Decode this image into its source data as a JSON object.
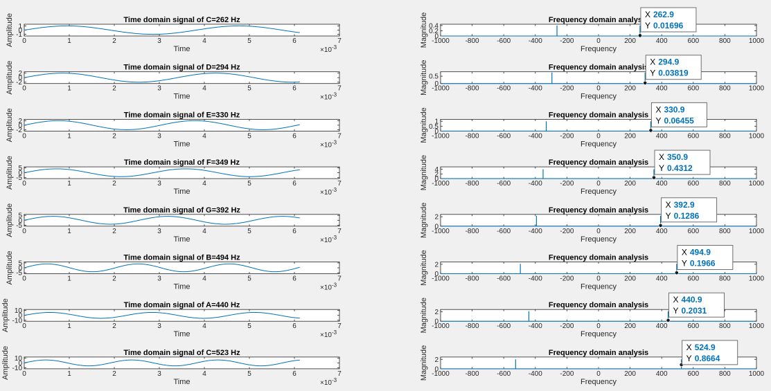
{
  "chart_data": [
    {
      "panel": "time",
      "row": 0,
      "type": "line",
      "title": "Time domain signal of C=262 Hz",
      "xlabel": "Time",
      "ylabel": "Amplitude",
      "freq_hz": 262,
      "amplitude": 1,
      "xlim": [
        0,
        7
      ],
      "x_exponent": "×10",
      "x_exponent_power": "-3",
      "xticks": [
        "0",
        "1",
        "2",
        "3",
        "4",
        "5",
        "6",
        "7"
      ],
      "ylim": [
        -1.4,
        1.4
      ],
      "yticks": [
        -1,
        0,
        1
      ],
      "ytick_labels": [
        "-1",
        "0",
        "1"
      ],
      "x_end": 6.12
    },
    {
      "panel": "time",
      "row": 1,
      "type": "line",
      "title": "Time domain signal of D=294 Hz",
      "xlabel": "Time",
      "ylabel": "Amplitude",
      "freq_hz": 294,
      "amplitude": 2,
      "xlim": [
        0,
        7
      ],
      "x_exponent": "×10",
      "x_exponent_power": "-3",
      "xticks": [
        "0",
        "1",
        "2",
        "3",
        "4",
        "5",
        "6",
        "7"
      ],
      "ylim": [
        -2.6,
        2.6
      ],
      "yticks": [
        -2,
        0,
        2
      ],
      "ytick_labels": [
        "-2",
        "0",
        "2"
      ],
      "x_end": 6.12
    },
    {
      "panel": "time",
      "row": 2,
      "type": "line",
      "title": "Time domain signal of E=330 Hz",
      "xlabel": "Time",
      "ylabel": "Amplitude",
      "freq_hz": 330,
      "amplitude": 2,
      "xlim": [
        0,
        7
      ],
      "x_exponent": "×10",
      "x_exponent_power": "-3",
      "xticks": [
        "0",
        "1",
        "2",
        "3",
        "4",
        "5",
        "6",
        "7"
      ],
      "ylim": [
        -2.6,
        2.6
      ],
      "yticks": [
        -2,
        0,
        2
      ],
      "ytick_labels": [
        "-2",
        "0",
        "2"
      ],
      "x_end": 6.12
    },
    {
      "panel": "time",
      "row": 3,
      "type": "line",
      "title": "Time domain signal of F=349 Hz",
      "xlabel": "Time",
      "ylabel": "Amplitude",
      "freq_hz": 349,
      "amplitude": 4,
      "xlim": [
        0,
        7
      ],
      "x_exponent": "×10",
      "x_exponent_power": "-3",
      "xticks": [
        "0",
        "1",
        "2",
        "3",
        "4",
        "5",
        "6",
        "7"
      ],
      "ylim": [
        -6,
        6
      ],
      "yticks": [
        -5,
        0,
        5
      ],
      "ytick_labels": [
        "-5",
        "0",
        "5"
      ],
      "x_end": 6.12
    },
    {
      "panel": "time",
      "row": 4,
      "type": "line",
      "title": "Time domain signal of G=392 Hz",
      "xlabel": "Time",
      "ylabel": "Amplitude",
      "freq_hz": 392,
      "amplitude": 4,
      "xlim": [
        0,
        7
      ],
      "x_exponent": "×10",
      "x_exponent_power": "-3",
      "xticks": [
        "0",
        "1",
        "2",
        "3",
        "4",
        "5",
        "6",
        "7"
      ],
      "ylim": [
        -6,
        6
      ],
      "yticks": [
        -5,
        0,
        5
      ],
      "ytick_labels": [
        "-5",
        "0",
        "5"
      ],
      "x_end": 6.12
    },
    {
      "panel": "time",
      "row": 5,
      "type": "line",
      "title": "Time domain signal of B=494 Hz",
      "xlabel": "Time",
      "ylabel": "Amplitude",
      "freq_hz": 494,
      "amplitude": 4,
      "xlim": [
        0,
        7
      ],
      "x_exponent": "×10",
      "x_exponent_power": "-3",
      "xticks": [
        "0",
        "1",
        "2",
        "3",
        "4",
        "5",
        "6",
        "7"
      ],
      "ylim": [
        -6,
        6
      ],
      "yticks": [
        -5,
        0,
        5
      ],
      "ytick_labels": [
        "-5",
        "0",
        "5"
      ],
      "x_end": 6.12
    },
    {
      "panel": "time",
      "row": 6,
      "type": "line",
      "title": "Time domain signal of A=440 Hz",
      "xlabel": "Time",
      "ylabel": "Amplitude",
      "freq_hz": 440,
      "amplitude": 6,
      "xlim": [
        0,
        7
      ],
      "x_exponent": "×10",
      "x_exponent_power": "-3",
      "xticks": [
        "0",
        "1",
        "2",
        "3",
        "4",
        "5",
        "6",
        "7"
      ],
      "ylim": [
        -12,
        12
      ],
      "yticks": [
        -10,
        0,
        10
      ],
      "ytick_labels": [
        "-10",
        "0",
        "10"
      ],
      "x_end": 6.12
    },
    {
      "panel": "time",
      "row": 7,
      "type": "line",
      "title": "Time domain signal of C=523 Hz",
      "xlabel": "Time",
      "ylabel": "Amplitude",
      "freq_hz": 523,
      "amplitude": 6,
      "xlim": [
        0,
        7
      ],
      "x_exponent": "×10",
      "x_exponent_power": "-3",
      "xticks": [
        "0",
        "1",
        "2",
        "3",
        "4",
        "5",
        "6",
        "7"
      ],
      "ylim": [
        -12,
        12
      ],
      "yticks": [
        -10,
        0,
        10
      ],
      "ytick_labels": [
        "-10",
        "0",
        "10"
      ],
      "x_end": 6.12
    },
    {
      "panel": "freq",
      "row": 0,
      "type": "line",
      "title": "Frequency domain analysis",
      "xlabel": "Frequency",
      "ylabel": "Magnitude",
      "xlim": [
        -1000,
        1000
      ],
      "xticks": [
        "-1000",
        "-800",
        "-600",
        "-400",
        "-200",
        "0",
        "200",
        "400",
        "600",
        "800",
        "1000"
      ],
      "ylim": [
        0,
        0.45
      ],
      "yticks": [
        0,
        0.2,
        0.4
      ],
      "ytick_labels": [
        "0",
        "0.2",
        "0.4"
      ],
      "peaks": [
        -262.9,
        262.9
      ],
      "peak_height": 0.4,
      "datatip": {
        "x_label": "X",
        "x_value": "262.9",
        "y_label": "Y",
        "y_value": "0.01696",
        "marker_x": 262.9,
        "marker_y": 0.01696
      }
    },
    {
      "panel": "freq",
      "row": 1,
      "type": "line",
      "title": "Frequency domain analysis",
      "xlabel": "Frequency",
      "ylabel": "Magnitude",
      "xlim": [
        -1000,
        1000
      ],
      "xticks": [
        "-1000",
        "-800",
        "-600",
        "-400",
        "-200",
        "0",
        "200",
        "400",
        "600",
        "800",
        "1000"
      ],
      "ylim": [
        0,
        0.8
      ],
      "yticks": [
        0,
        0.5
      ],
      "ytick_labels": [
        "0",
        "0.5"
      ],
      "peaks": [
        -294.9,
        294.9
      ],
      "peak_height": 0.75,
      "datatip": {
        "x_label": "X",
        "x_value": "294.9",
        "y_label": "Y",
        "y_value": "0.03819",
        "marker_x": 294.9,
        "marker_y": 0.03819
      }
    },
    {
      "panel": "freq",
      "row": 2,
      "type": "line",
      "title": "Frequency domain analysis",
      "xlabel": "Frequency",
      "ylabel": "Magnitude",
      "xlim": [
        -1000,
        1000
      ],
      "xticks": [
        "-1000",
        "-800",
        "-600",
        "-400",
        "-200",
        "0",
        "200",
        "400",
        "600",
        "800",
        "1000"
      ],
      "ylim": [
        0,
        1.2
      ],
      "yticks": [
        0,
        0.5,
        1
      ],
      "ytick_labels": [
        "0",
        "0.5",
        "1"
      ],
      "peaks": [
        -330.9,
        330.9
      ],
      "peak_height": 1.0,
      "datatip": {
        "x_label": "X",
        "x_value": "330.9",
        "y_label": "Y",
        "y_value": "0.06455",
        "marker_x": 330.9,
        "marker_y": 0.06455
      }
    },
    {
      "panel": "freq",
      "row": 3,
      "type": "line",
      "title": "Frequency domain analysis",
      "xlabel": "Frequency",
      "ylabel": "Magnitude",
      "xlim": [
        -1000,
        1000
      ],
      "xticks": [
        "-1000",
        "-800",
        "-600",
        "-400",
        "-200",
        "0",
        "200",
        "400",
        "600",
        "800",
        "1000"
      ],
      "ylim": [
        0,
        5
      ],
      "yticks": [
        0,
        2,
        4
      ],
      "ytick_labels": [
        "0",
        "2",
        "4"
      ],
      "peaks": [
        -350.9,
        350.9
      ],
      "peak_height": 4.0,
      "datatip": {
        "x_label": "X",
        "x_value": "350.9",
        "y_label": "Y",
        "y_value": "0.4312",
        "marker_x": 350.9,
        "marker_y": 0.4312
      }
    },
    {
      "panel": "freq",
      "row": 4,
      "type": "line",
      "title": "Frequency domain analysis",
      "xlabel": "Frequency",
      "ylabel": "Magnitude",
      "xlim": [
        -1000,
        1000
      ],
      "xticks": [
        "-1000",
        "-800",
        "-600",
        "-400",
        "-200",
        "0",
        "200",
        "400",
        "600",
        "800",
        "1000"
      ],
      "ylim": [
        0,
        2.5
      ],
      "yticks": [
        0,
        2
      ],
      "ytick_labels": [
        "0",
        "2"
      ],
      "peaks": [
        -392.9,
        392.9
      ],
      "peak_height": 2.2,
      "datatip": {
        "x_label": "X",
        "x_value": "392.9",
        "y_label": "Y",
        "y_value": "0.1286",
        "marker_x": 392.9,
        "marker_y": 0.1286
      }
    },
    {
      "panel": "freq",
      "row": 5,
      "type": "line",
      "title": "Frequency domain analysis",
      "xlabel": "Frequency",
      "ylabel": "Magnitude",
      "xlim": [
        -1000,
        1000
      ],
      "xticks": [
        "-1000",
        "-800",
        "-600",
        "-400",
        "-200",
        "0",
        "200",
        "400",
        "600",
        "800",
        "1000"
      ],
      "ylim": [
        0,
        2.5
      ],
      "yticks": [
        0,
        2
      ],
      "ytick_labels": [
        "0",
        "2"
      ],
      "peaks": [
        -494.9,
        494.9
      ],
      "peak_height": 2.1,
      "datatip": {
        "x_label": "X",
        "x_value": "494.9",
        "y_label": "Y",
        "y_value": "0.1966",
        "marker_x": 494.9,
        "marker_y": 0.1966
      }
    },
    {
      "panel": "freq",
      "row": 6,
      "type": "line",
      "title": "Frequency domain analysis",
      "xlabel": "Frequency",
      "ylabel": "Magnitude",
      "xlim": [
        -1000,
        1000
      ],
      "xticks": [
        "-1000",
        "-800",
        "-600",
        "-400",
        "-200",
        "0",
        "200",
        "400",
        "600",
        "800",
        "1000"
      ],
      "ylim": [
        0,
        2.5
      ],
      "yticks": [
        0,
        2
      ],
      "ytick_labels": [
        "0",
        "2"
      ],
      "peaks": [
        -440.9,
        440.9
      ],
      "peak_height": 2.1,
      "datatip": {
        "x_label": "X",
        "x_value": "440.9",
        "y_label": "Y",
        "y_value": "0.2031",
        "marker_x": 440.9,
        "marker_y": 0.2031
      }
    },
    {
      "panel": "freq",
      "row": 7,
      "type": "line",
      "title": "Frequency domain analysis",
      "xlabel": "Frequency",
      "ylabel": "Magnitude",
      "xlim": [
        -1000,
        1000
      ],
      "xticks": [
        "-1000",
        "-800",
        "-600",
        "-400",
        "-200",
        "0",
        "200",
        "400",
        "600",
        "800",
        "1000"
      ],
      "ylim": [
        0,
        2.5
      ],
      "yticks": [
        0,
        2
      ],
      "ytick_labels": [
        "0",
        "2"
      ],
      "peaks": [
        -524.9,
        524.9
      ],
      "peak_height": 2.0,
      "datatip": {
        "x_label": "X",
        "x_value": "524.9",
        "y_label": "Y",
        "y_value": "0.8664",
        "marker_x": 524.9,
        "marker_y": 0.8664
      }
    }
  ],
  "colors": {
    "line": "#0072bd",
    "background": "#f0f0f0",
    "axes_bg": "#ffffff",
    "axis": "#262626",
    "datatip_text": "#0072bd",
    "datatip_marker": "#1a1a1a"
  }
}
